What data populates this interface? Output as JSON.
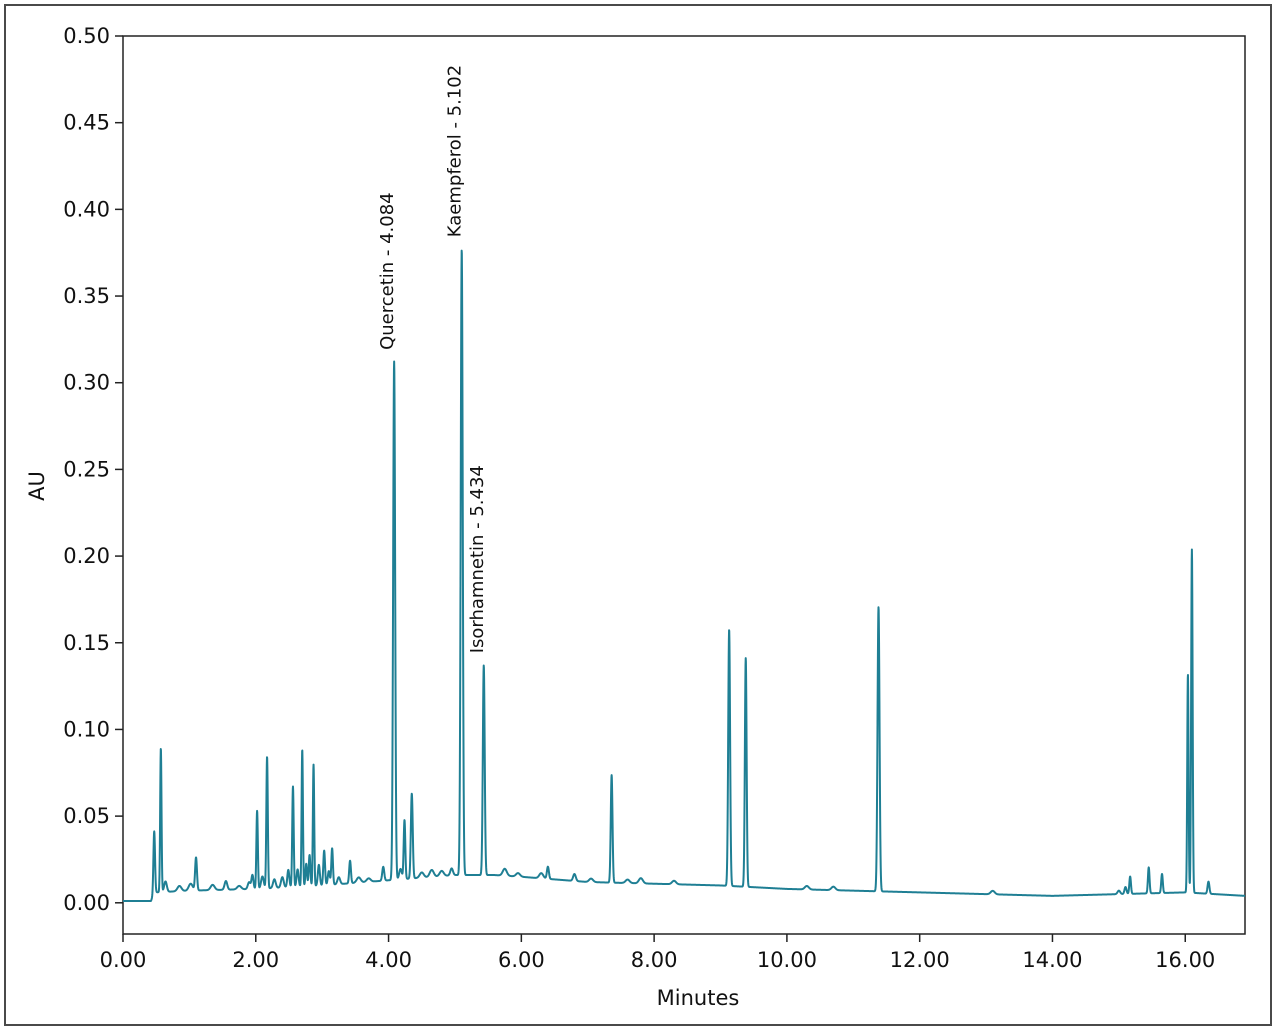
{
  "chart_data": {
    "type": "line",
    "title": "",
    "xlabel": "Minutes",
    "ylabel": "AU",
    "xlim": [
      0,
      16.9
    ],
    "ylim": [
      -0.018,
      0.5
    ],
    "grid": false,
    "line_color": "#1f7f94",
    "x_ticks": [
      0,
      2,
      4,
      6,
      8,
      10,
      12,
      14,
      16
    ],
    "x_tick_labels": [
      "0.00",
      "2.00",
      "4.00",
      "6.00",
      "8.00",
      "10.00",
      "12.00",
      "14.00",
      "16.00"
    ],
    "y_ticks": [
      0,
      0.05,
      0.1,
      0.15,
      0.2,
      0.25,
      0.3,
      0.35,
      0.4,
      0.45,
      0.5
    ],
    "y_tick_labels": [
      "0.00",
      "0.05",
      "0.10",
      "0.15",
      "0.20",
      "0.25",
      "0.30",
      "0.35",
      "0.40",
      "0.45",
      "0.50"
    ],
    "annotations": [
      {
        "text": "Quercetin - 4.084",
        "x": 4.084,
        "y": 0.312
      },
      {
        "text": "Kaempferol - 5.102",
        "x": 5.102,
        "y": 0.377
      },
      {
        "text": "Isorhamnetin - 5.434",
        "x": 5.434,
        "y": 0.137
      }
    ],
    "baseline": [
      [
        0,
        0.001
      ],
      [
        0.42,
        0.001
      ],
      [
        0.48,
        0.006
      ],
      [
        1.0,
        0.007
      ],
      [
        2.0,
        0.008
      ],
      [
        3.0,
        0.01
      ],
      [
        4.0,
        0.013
      ],
      [
        5.0,
        0.016
      ],
      [
        5.6,
        0.016
      ],
      [
        6.0,
        0.015
      ],
      [
        7.0,
        0.012
      ],
      [
        8.0,
        0.011
      ],
      [
        9.0,
        0.01
      ],
      [
        10.0,
        0.008
      ],
      [
        11.0,
        0.007
      ],
      [
        12.0,
        0.006
      ],
      [
        13.0,
        0.005
      ],
      [
        14.0,
        0.004
      ],
      [
        15.0,
        0.005
      ],
      [
        16.0,
        0.006
      ],
      [
        16.9,
        0.004
      ]
    ],
    "peaks": [
      {
        "x": 0.47,
        "h": 0.036,
        "w": 0.012
      },
      {
        "x": 0.57,
        "h": 0.083,
        "w": 0.01
      },
      {
        "x": 0.64,
        "h": 0.006,
        "w": 0.02
      },
      {
        "x": 0.85,
        "h": 0.003,
        "w": 0.03
      },
      {
        "x": 1.02,
        "h": 0.004,
        "w": 0.03
      },
      {
        "x": 1.1,
        "h": 0.019,
        "w": 0.014
      },
      {
        "x": 1.35,
        "h": 0.003,
        "w": 0.03
      },
      {
        "x": 1.55,
        "h": 0.005,
        "w": 0.02
      },
      {
        "x": 1.75,
        "h": 0.002,
        "w": 0.03
      },
      {
        "x": 1.9,
        "h": 0.004,
        "w": 0.02
      },
      {
        "x": 1.95,
        "h": 0.008,
        "w": 0.015
      },
      {
        "x": 2.02,
        "h": 0.045,
        "w": 0.011
      },
      {
        "x": 2.1,
        "h": 0.007,
        "w": 0.02
      },
      {
        "x": 2.17,
        "h": 0.076,
        "w": 0.011
      },
      {
        "x": 2.28,
        "h": 0.005,
        "w": 0.02
      },
      {
        "x": 2.4,
        "h": 0.006,
        "w": 0.02
      },
      {
        "x": 2.49,
        "h": 0.01,
        "w": 0.015
      },
      {
        "x": 2.56,
        "h": 0.058,
        "w": 0.011
      },
      {
        "x": 2.63,
        "h": 0.01,
        "w": 0.015
      },
      {
        "x": 2.7,
        "h": 0.079,
        "w": 0.01
      },
      {
        "x": 2.76,
        "h": 0.013,
        "w": 0.012
      },
      {
        "x": 2.81,
        "h": 0.018,
        "w": 0.012
      },
      {
        "x": 2.87,
        "h": 0.07,
        "w": 0.01
      },
      {
        "x": 2.95,
        "h": 0.012,
        "w": 0.015
      },
      {
        "x": 3.03,
        "h": 0.02,
        "w": 0.013
      },
      {
        "x": 3.1,
        "h": 0.008,
        "w": 0.015
      },
      {
        "x": 3.15,
        "h": 0.021,
        "w": 0.012
      },
      {
        "x": 3.25,
        "h": 0.004,
        "w": 0.02
      },
      {
        "x": 3.42,
        "h": 0.013,
        "w": 0.013
      },
      {
        "x": 3.55,
        "h": 0.003,
        "w": 0.03
      },
      {
        "x": 3.7,
        "h": 0.002,
        "w": 0.03
      },
      {
        "x": 3.92,
        "h": 0.008,
        "w": 0.015
      },
      {
        "x": 4.084,
        "h": 0.299,
        "w": 0.015
      },
      {
        "x": 4.18,
        "h": 0.006,
        "w": 0.02
      },
      {
        "x": 4.24,
        "h": 0.034,
        "w": 0.012
      },
      {
        "x": 4.35,
        "h": 0.049,
        "w": 0.014
      },
      {
        "x": 4.5,
        "h": 0.003,
        "w": 0.03
      },
      {
        "x": 4.65,
        "h": 0.004,
        "w": 0.03
      },
      {
        "x": 4.8,
        "h": 0.003,
        "w": 0.03
      },
      {
        "x": 4.95,
        "h": 0.004,
        "w": 0.02
      },
      {
        "x": 5.102,
        "h": 0.361,
        "w": 0.015
      },
      {
        "x": 5.434,
        "h": 0.121,
        "w": 0.014
      },
      {
        "x": 5.75,
        "h": 0.004,
        "w": 0.03
      },
      {
        "x": 5.95,
        "h": 0.002,
        "w": 0.03
      },
      {
        "x": 6.3,
        "h": 0.003,
        "w": 0.03
      },
      {
        "x": 6.4,
        "h": 0.007,
        "w": 0.015
      },
      {
        "x": 6.8,
        "h": 0.004,
        "w": 0.02
      },
      {
        "x": 7.05,
        "h": 0.002,
        "w": 0.03
      },
      {
        "x": 7.36,
        "h": 0.062,
        "w": 0.013
      },
      {
        "x": 7.6,
        "h": 0.002,
        "w": 0.03
      },
      {
        "x": 7.8,
        "h": 0.003,
        "w": 0.03
      },
      {
        "x": 8.3,
        "h": 0.002,
        "w": 0.03
      },
      {
        "x": 9.13,
        "h": 0.148,
        "w": 0.014
      },
      {
        "x": 9.38,
        "h": 0.132,
        "w": 0.013
      },
      {
        "x": 10.3,
        "h": 0.002,
        "w": 0.03
      },
      {
        "x": 10.7,
        "h": 0.002,
        "w": 0.03
      },
      {
        "x": 11.38,
        "h": 0.164,
        "w": 0.015
      },
      {
        "x": 13.1,
        "h": 0.002,
        "w": 0.03
      },
      {
        "x": 15.0,
        "h": 0.002,
        "w": 0.02
      },
      {
        "x": 15.1,
        "h": 0.004,
        "w": 0.015
      },
      {
        "x": 15.17,
        "h": 0.01,
        "w": 0.012
      },
      {
        "x": 15.45,
        "h": 0.015,
        "w": 0.012
      },
      {
        "x": 15.65,
        "h": 0.011,
        "w": 0.012
      },
      {
        "x": 16.04,
        "h": 0.126,
        "w": 0.01
      },
      {
        "x": 16.1,
        "h": 0.198,
        "w": 0.011
      },
      {
        "x": 16.35,
        "h": 0.007,
        "w": 0.014
      }
    ]
  }
}
